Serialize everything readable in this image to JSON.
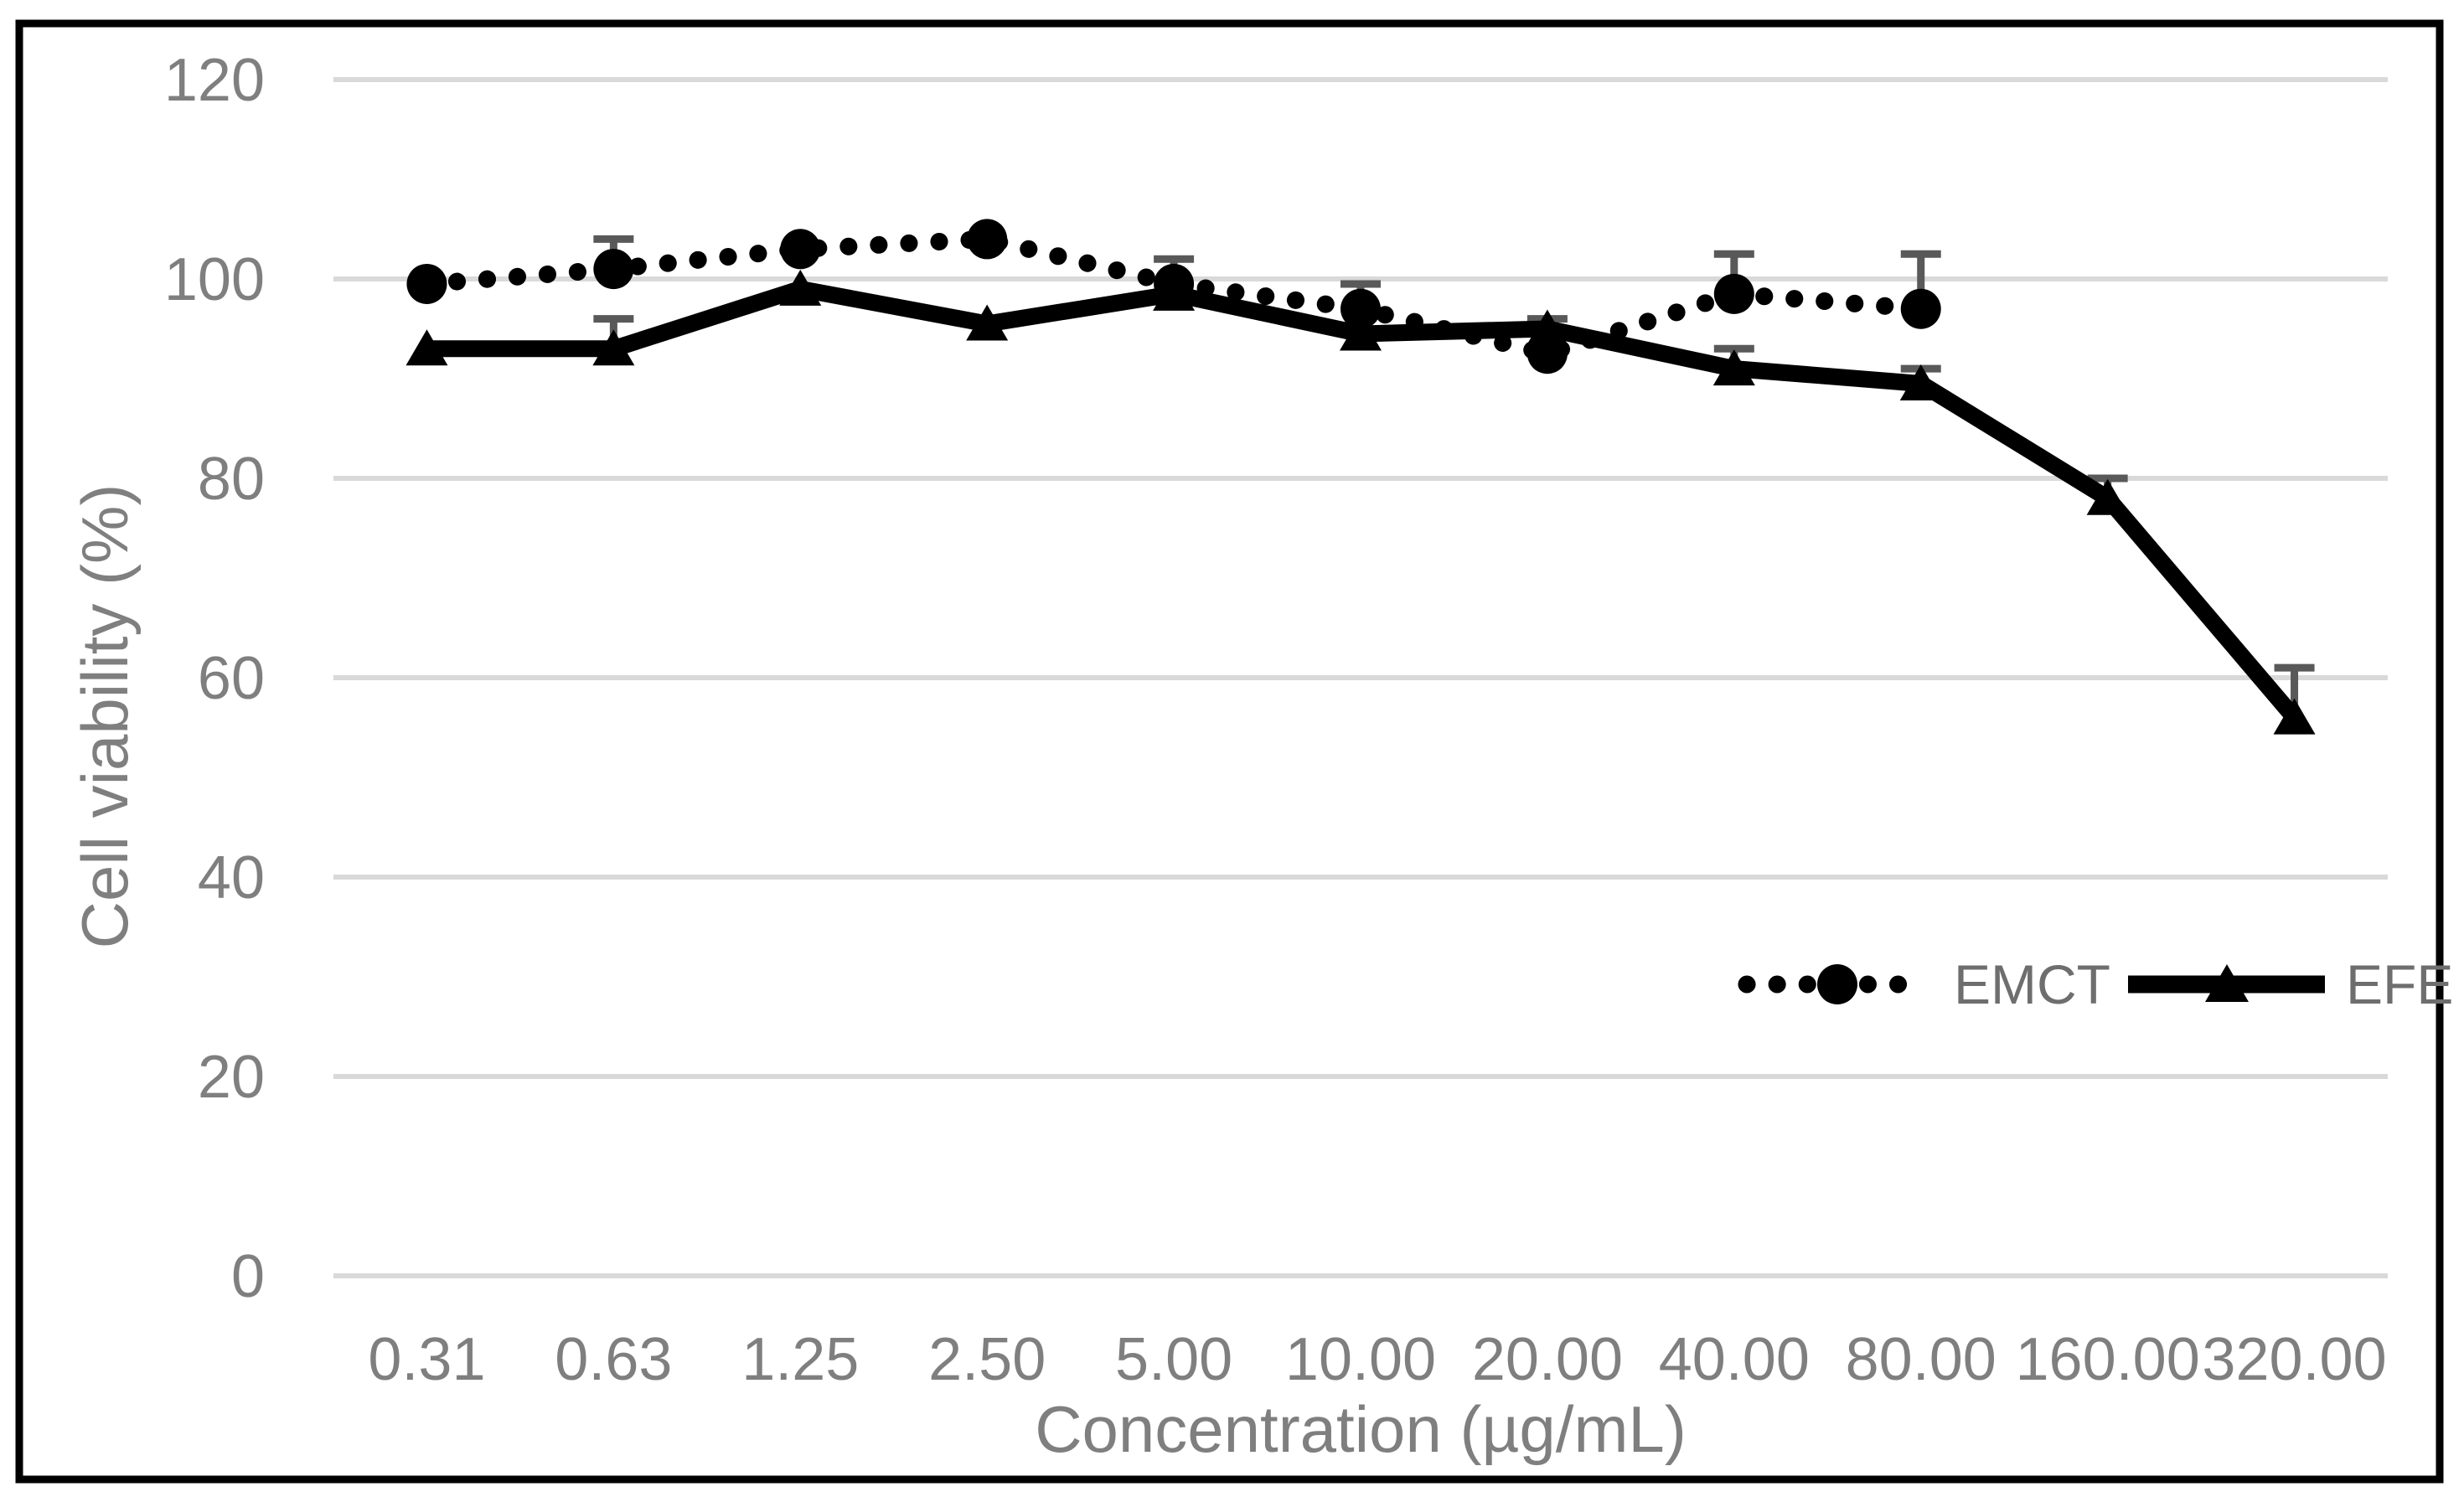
{
  "chart_data": {
    "type": "line",
    "title": "",
    "xlabel": "Concentration (µg/mL)",
    "ylabel": "Cell viability (%)",
    "categories": [
      "0.31",
      "0.63",
      "1.25",
      "2.50",
      "5.00",
      "10.00",
      "20.00",
      "40.00",
      "80.00",
      "160.00",
      "320.00"
    ],
    "y_ticks": [
      0,
      20,
      40,
      60,
      80,
      100,
      120
    ],
    "ylim": [
      0,
      120
    ],
    "grid": "horizontal",
    "legend_position": "inside-right",
    "series": [
      {
        "name": "EMCT",
        "marker": "filled-circle",
        "line_style": "dotted",
        "color": "#000000",
        "values": [
          99.5,
          101,
          103,
          104,
          99.5,
          97,
          92.5,
          98.5,
          97,
          null,
          null
        ],
        "error_up": [
          null,
          3,
          null,
          null,
          2.5,
          2.5,
          null,
          4,
          5.5,
          null,
          null
        ]
      },
      {
        "name": "EFE",
        "marker": "filled-triangle",
        "line_style": "solid",
        "color": "#000000",
        "values": [
          93,
          93,
          99,
          95.5,
          98.5,
          94.5,
          95,
          91,
          89.5,
          78,
          56
        ],
        "error_up": [
          null,
          3,
          null,
          null,
          null,
          null,
          1,
          2,
          1.5,
          2,
          5
        ]
      }
    ],
    "colors": {
      "gridline": "#d9d9d9",
      "axis_text": "#7f7f7f",
      "legend_text": "#6e6e6e",
      "error_bar": "#595959",
      "series": "#000000",
      "figure_border": "#000000",
      "background": "#ffffff"
    }
  }
}
